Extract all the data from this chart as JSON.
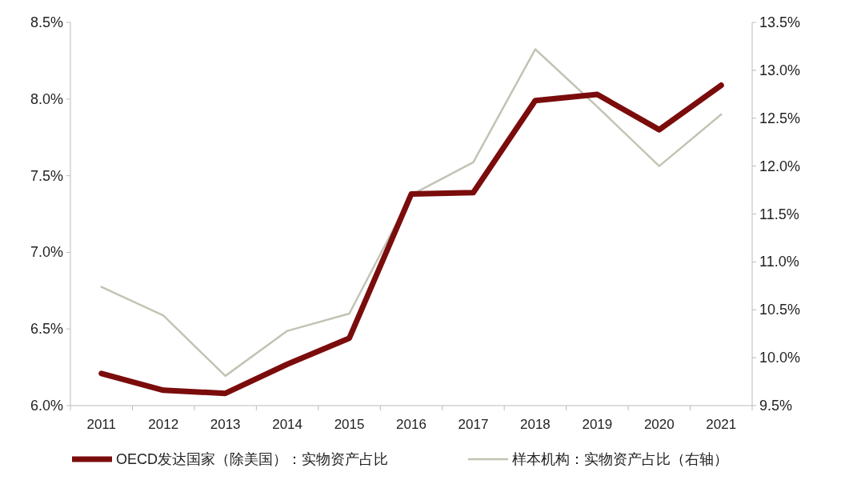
{
  "chart_data": {
    "type": "line",
    "categories": [
      "2011",
      "2012",
      "2013",
      "2014",
      "2015",
      "2016",
      "2017",
      "2018",
      "2019",
      "2020",
      "2021"
    ],
    "series": [
      {
        "name": "OECD发达国家（除美国）：实物资产占比",
        "color": "#7b0c0c",
        "values": [
          6.21,
          6.1,
          6.08,
          6.27,
          6.44,
          7.38,
          7.39,
          7.99,
          8.03,
          7.8,
          8.09
        ]
      },
      {
        "name": "样本机构：实物资产占比（右轴）",
        "color": "#c3c3b4",
        "axis": "y2",
        "values": [
          10.74,
          10.44,
          9.81,
          10.28,
          10.46,
          11.7,
          12.04,
          13.22,
          12.62,
          12.0,
          12.54
        ]
      }
    ],
    "ylim": [
      6.0,
      8.5
    ],
    "yticks": [
      {
        "value": 6.0,
        "label": "6.0%"
      },
      {
        "value": 6.5,
        "label": "6.5%"
      },
      {
        "value": 7.0,
        "label": "7.0%"
      },
      {
        "value": 7.5,
        "label": "7.5%"
      },
      {
        "value": 8.0,
        "label": "8.0%"
      },
      {
        "value": 8.5,
        "label": "8.5%"
      }
    ],
    "y2lim": [
      9.5,
      13.5
    ],
    "y2ticks": [
      {
        "value": 9.5,
        "label": "9.5%"
      },
      {
        "value": 10.0,
        "label": "10.0%"
      },
      {
        "value": 10.5,
        "label": "10.5%"
      },
      {
        "value": 11.0,
        "label": "11.0%"
      },
      {
        "value": 11.5,
        "label": "11.5%"
      },
      {
        "value": 12.0,
        "label": "12.0%"
      },
      {
        "value": 12.5,
        "label": "12.5%"
      },
      {
        "value": 13.0,
        "label": "13.0%"
      },
      {
        "value": 13.5,
        "label": "13.5%"
      }
    ],
    "grid": false,
    "legend": "bottom"
  }
}
